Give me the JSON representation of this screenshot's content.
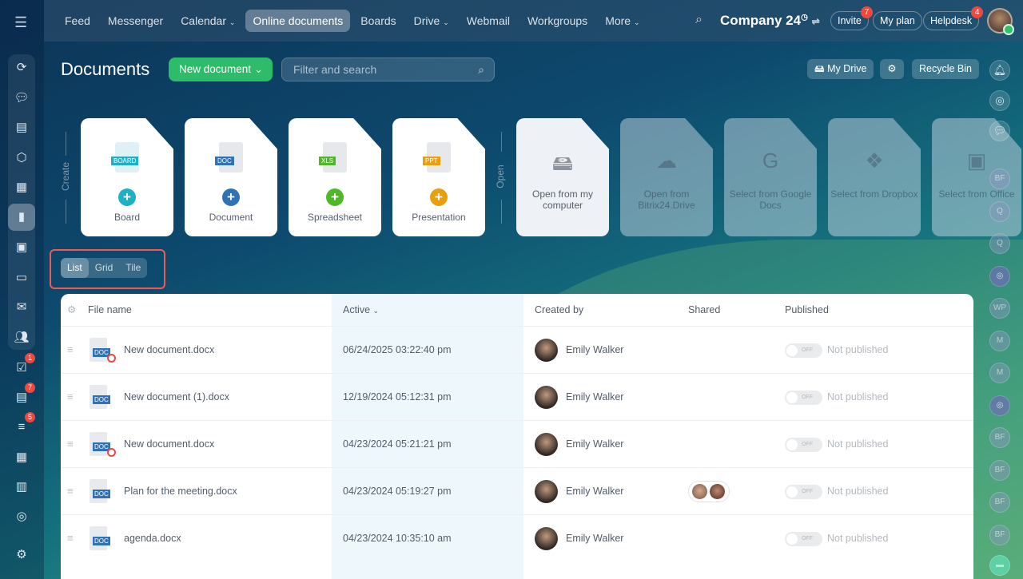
{
  "topbar": {
    "menu_icon": "hamburger-icon",
    "nav": [
      "Feed",
      "Messenger",
      "Calendar",
      "Online documents",
      "Boards",
      "Drive",
      "Webmail",
      "Workgroups",
      "More"
    ],
    "active_nav": "Online documents",
    "company": "Company 24",
    "invite": "Invite",
    "invite_badge": "7",
    "my_plan": "My plan",
    "helpdesk": "Helpdesk",
    "helpdesk_badge": "4"
  },
  "left_sidebar": {
    "badges": {
      "tasks": "1",
      "feed": "7",
      "crm": "5"
    }
  },
  "header": {
    "title": "Documents",
    "new_document": "New document",
    "search_placeholder": "Filter and search",
    "my_drive": "My Drive",
    "recycle_bin": "Recycle Bin"
  },
  "create": {
    "label": "Create",
    "cards": [
      {
        "label": "Board",
        "tag": "BOARD",
        "color": "#1fb0c5"
      },
      {
        "label": "Document",
        "tag": "DOC",
        "color": "#2f72b6"
      },
      {
        "label": "Spreadsheet",
        "tag": "XLS",
        "color": "#4fb82a"
      },
      {
        "label": "Presentation",
        "tag": "PPT",
        "color": "#e8a00f"
      }
    ]
  },
  "open": {
    "label": "Open",
    "cards": [
      {
        "label": "Open from my computer"
      },
      {
        "label": "Open from Bitrix24.Drive"
      },
      {
        "label": "Select from Google Docs"
      },
      {
        "label": "Select from Dropbox"
      },
      {
        "label": "Select from Office"
      }
    ]
  },
  "views": [
    "List",
    "Grid",
    "Tile"
  ],
  "active_view": "List",
  "table": {
    "columns": [
      "File name",
      "Active",
      "Created by",
      "Shared",
      "Published"
    ],
    "rows": [
      {
        "name": "New document.docx",
        "active": "06/24/2025 03:22:40 pm",
        "created_by": "Emily Walker",
        "shared": false,
        "published": "Not published",
        "blocked": true
      },
      {
        "name": "New document (1).docx",
        "active": "12/19/2024 05:12:31 pm",
        "created_by": "Emily Walker",
        "shared": false,
        "published": "Not published",
        "blocked": false
      },
      {
        "name": "New document.docx",
        "active": "04/23/2024 05:21:21 pm",
        "created_by": "Emily Walker",
        "shared": false,
        "published": "Not published",
        "blocked": true
      },
      {
        "name": "Plan for the meeting.docx",
        "active": "04/23/2024 05:19:27 pm",
        "created_by": "Emily Walker",
        "shared": true,
        "published": "Not published",
        "blocked": false
      },
      {
        "name": "agenda.docx",
        "active": "04/23/2024 10:35:10 am",
        "created_by": "Emily Walker",
        "shared": false,
        "published": "Not published",
        "blocked": false
      }
    ],
    "toggle_label": "OFF",
    "file_tag": "DOC"
  },
  "right_sidebar": {
    "avatars": [
      "BF",
      "Q",
      "Q",
      "",
      "WP",
      "M",
      "M",
      "",
      "BF",
      "BF",
      "BF",
      "BF"
    ]
  }
}
